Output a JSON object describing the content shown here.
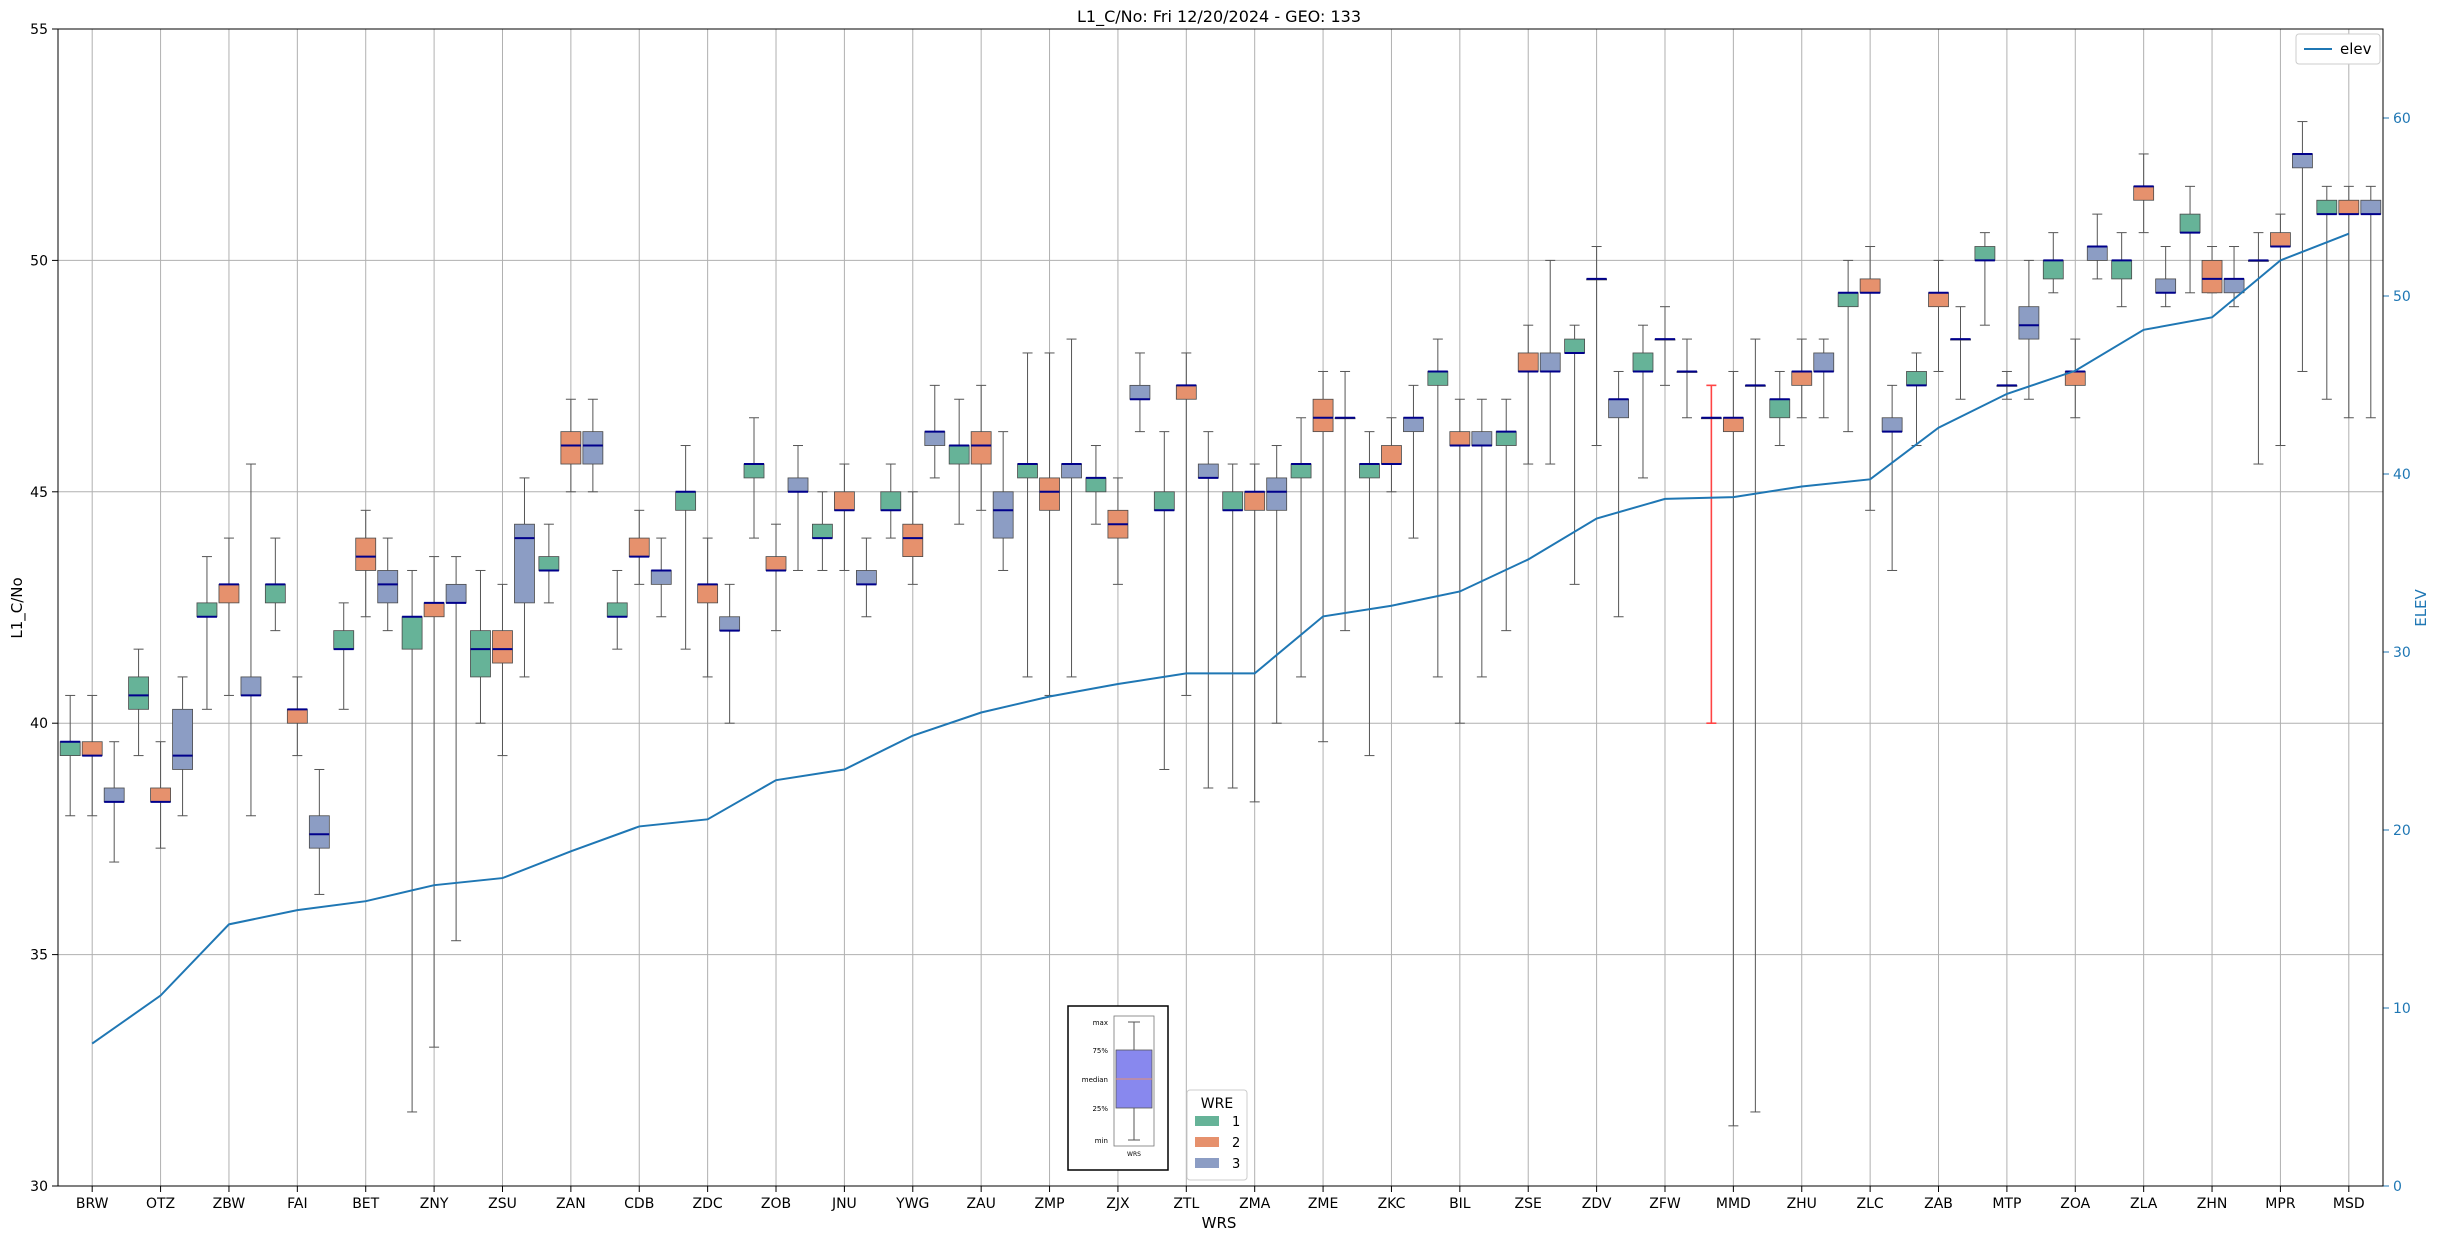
{
  "chart_data": {
    "type": "box",
    "title": "L1_C/No: Fri 12/20/2024 - GEO: 133",
    "xlabel": "WRS",
    "ylabel": "L1_C/No",
    "y2label": "ELEV",
    "ylim": [
      30,
      55
    ],
    "y2lim": [
      0,
      65
    ],
    "yticks": [
      "30",
      "35",
      "40",
      "45",
      "50",
      "55"
    ],
    "y2ticks": [
      "0",
      "10",
      "20",
      "30",
      "40",
      "50",
      "60"
    ],
    "grid": true,
    "colors": {
      "wre1": "#66b398",
      "wre2": "#e6916d",
      "wre3": "#8c9dc4",
      "median": "#00008b",
      "elev": "#1f77b4",
      "whisker": "#555555",
      "outlier_whisker": "#ff4444"
    },
    "legend_elev": {
      "label": "elev",
      "placement": "top-right"
    },
    "legend_wre": {
      "title": "WRE",
      "labels": [
        "1",
        "2",
        "3"
      ],
      "placement": "bottom-center"
    },
    "key_box": {
      "labels": [
        "max",
        "75%",
        "median",
        "25%",
        "min"
      ],
      "xlabel": "WRS"
    },
    "categories": [
      "BRW",
      "OTZ",
      "ZBW",
      "FAI",
      "BET",
      "ZNY",
      "ZSU",
      "ZAN",
      "CDB",
      "ZDC",
      "ZOB",
      "JNU",
      "YWG",
      "ZAU",
      "ZMP",
      "ZJX",
      "ZTL",
      "ZMA",
      "ZME",
      "ZKC",
      "BIL",
      "ZSE",
      "ZDV",
      "ZFW",
      "MMD",
      "ZHU",
      "ZLC",
      "ZAB",
      "MTP",
      "ZOA",
      "ZLA",
      "ZHN",
      "MPR",
      "MSD"
    ],
    "elev": [
      8,
      10.7,
      14.7,
      15.5,
      16,
      16.9,
      17.3,
      18.8,
      20.2,
      20.6,
      22.8,
      23.4,
      25.3,
      26.6,
      27.5,
      28.2,
      28.8,
      28.8,
      32,
      32.6,
      33.4,
      35.2,
      37.5,
      38.6,
      38.7,
      39.3,
      39.7,
      42.6,
      44.5,
      45.8,
      48.1,
      48.8,
      52,
      53.5
    ],
    "boxes": [
      {
        "cat": "BRW",
        "wre": 1,
        "min": 38,
        "q1": 39.3,
        "med": 39.6,
        "q3": 39.6,
        "max": 40.6
      },
      {
        "cat": "BRW",
        "wre": 2,
        "min": 38,
        "q1": 39.3,
        "med": 39.3,
        "q3": 39.6,
        "max": 40.6
      },
      {
        "cat": "BRW",
        "wre": 3,
        "min": 37,
        "q1": 38.3,
        "med": 38.3,
        "q3": 38.6,
        "max": 39.6
      },
      {
        "cat": "OTZ",
        "wre": 1,
        "min": 39.3,
        "q1": 40.3,
        "med": 40.6,
        "q3": 41,
        "max": 41.6
      },
      {
        "cat": "OTZ",
        "wre": 2,
        "min": 37.3,
        "q1": 38.3,
        "med": 38.3,
        "q3": 38.6,
        "max": 39.6
      },
      {
        "cat": "OTZ",
        "wre": 3,
        "min": 38,
        "q1": 39,
        "med": 39.3,
        "q3": 40.3,
        "max": 41
      },
      {
        "cat": "ZBW",
        "wre": 1,
        "min": 40.3,
        "q1": 42.3,
        "med": 42.3,
        "q3": 42.6,
        "max": 43.6
      },
      {
        "cat": "ZBW",
        "wre": 2,
        "min": 40.6,
        "q1": 42.6,
        "med": 43,
        "q3": 43,
        "max": 44
      },
      {
        "cat": "ZBW",
        "wre": 3,
        "min": 38,
        "q1": 40.6,
        "med": 40.6,
        "q3": 41,
        "max": 45.6
      },
      {
        "cat": "FAI",
        "wre": 1,
        "min": 42,
        "q1": 42.6,
        "med": 43,
        "q3": 43,
        "max": 44
      },
      {
        "cat": "FAI",
        "wre": 2,
        "min": 39.3,
        "q1": 40,
        "med": 40.3,
        "q3": 40.3,
        "max": 41
      },
      {
        "cat": "FAI",
        "wre": 3,
        "min": 36.3,
        "q1": 37.3,
        "med": 37.6,
        "q3": 38,
        "max": 39
      },
      {
        "cat": "BET",
        "wre": 1,
        "min": 40.3,
        "q1": 41.6,
        "med": 41.6,
        "q3": 42,
        "max": 42.6
      },
      {
        "cat": "BET",
        "wre": 2,
        "min": 42.3,
        "q1": 43.3,
        "med": 43.6,
        "q3": 44,
        "max": 44.6
      },
      {
        "cat": "BET",
        "wre": 3,
        "min": 42,
        "q1": 42.6,
        "med": 43,
        "q3": 43.3,
        "max": 44
      },
      {
        "cat": "ZNY",
        "wre": 1,
        "min": 31.6,
        "q1": 41.6,
        "med": 42.3,
        "q3": 42.3,
        "max": 43.3
      },
      {
        "cat": "ZNY",
        "wre": 2,
        "min": 33,
        "q1": 42.3,
        "med": 42.6,
        "q3": 42.6,
        "max": 43.6
      },
      {
        "cat": "ZNY",
        "wre": 3,
        "min": 35.3,
        "q1": 42.6,
        "med": 42.6,
        "q3": 43,
        "max": 43.6
      },
      {
        "cat": "ZSU",
        "wre": 1,
        "min": 40,
        "q1": 41,
        "med": 41.6,
        "q3": 42,
        "max": 43.3
      },
      {
        "cat": "ZSU",
        "wre": 2,
        "min": 39.3,
        "q1": 41.3,
        "med": 41.6,
        "q3": 42,
        "max": 43
      },
      {
        "cat": "ZSU",
        "wre": 3,
        "min": 41,
        "q1": 42.6,
        "med": 44,
        "q3": 44.3,
        "max": 45.3
      },
      {
        "cat": "ZAN",
        "wre": 1,
        "min": 42.6,
        "q1": 43.3,
        "med": 43.3,
        "q3": 43.6,
        "max": 44.3
      },
      {
        "cat": "ZAN",
        "wre": 2,
        "min": 45,
        "q1": 45.6,
        "med": 46,
        "q3": 46.3,
        "max": 47
      },
      {
        "cat": "ZAN",
        "wre": 3,
        "min": 45,
        "q1": 45.6,
        "med": 46,
        "q3": 46.3,
        "max": 47
      },
      {
        "cat": "CDB",
        "wre": 1,
        "min": 41.6,
        "q1": 42.3,
        "med": 42.3,
        "q3": 42.6,
        "max": 43.3
      },
      {
        "cat": "CDB",
        "wre": 2,
        "min": 43,
        "q1": 43.6,
        "med": 43.6,
        "q3": 44,
        "max": 44.6
      },
      {
        "cat": "CDB",
        "wre": 3,
        "min": 42.3,
        "q1": 43,
        "med": 43.3,
        "q3": 43.3,
        "max": 44
      },
      {
        "cat": "ZDC",
        "wre": 1,
        "min": 41.6,
        "q1": 44.6,
        "med": 45,
        "q3": 45,
        "max": 46
      },
      {
        "cat": "ZDC",
        "wre": 2,
        "min": 41,
        "q1": 42.6,
        "med": 43,
        "q3": 43,
        "max": 44
      },
      {
        "cat": "ZDC",
        "wre": 3,
        "min": 40,
        "q1": 42,
        "med": 42,
        "q3": 42.3,
        "max": 43
      },
      {
        "cat": "ZOB",
        "wre": 1,
        "min": 44,
        "q1": 45.3,
        "med": 45.6,
        "q3": 45.6,
        "max": 46.6
      },
      {
        "cat": "ZOB",
        "wre": 2,
        "min": 42,
        "q1": 43.3,
        "med": 43.3,
        "q3": 43.6,
        "max": 44.3
      },
      {
        "cat": "ZOB",
        "wre": 3,
        "min": 43.3,
        "q1": 45,
        "med": 45,
        "q3": 45.3,
        "max": 46
      },
      {
        "cat": "JNU",
        "wre": 1,
        "min": 43.3,
        "q1": 44,
        "med": 44,
        "q3": 44.3,
        "max": 45
      },
      {
        "cat": "JNU",
        "wre": 2,
        "min": 43.3,
        "q1": 44.6,
        "med": 44.6,
        "q3": 45,
        "max": 45.6
      },
      {
        "cat": "JNU",
        "wre": 3,
        "min": 42.3,
        "q1": 43,
        "med": 43,
        "q3": 43.3,
        "max": 44
      },
      {
        "cat": "YWG",
        "wre": 1,
        "min": 44,
        "q1": 44.6,
        "med": 44.6,
        "q3": 45,
        "max": 45.6
      },
      {
        "cat": "YWG",
        "wre": 2,
        "min": 43,
        "q1": 43.6,
        "med": 44,
        "q3": 44.3,
        "max": 45
      },
      {
        "cat": "YWG",
        "wre": 3,
        "min": 45.3,
        "q1": 46,
        "med": 46.3,
        "q3": 46.3,
        "max": 47.3
      },
      {
        "cat": "ZAU",
        "wre": 1,
        "min": 44.3,
        "q1": 45.6,
        "med": 46,
        "q3": 46,
        "max": 47
      },
      {
        "cat": "ZAU",
        "wre": 2,
        "min": 44.6,
        "q1": 45.6,
        "med": 46,
        "q3": 46.3,
        "max": 47.3
      },
      {
        "cat": "ZAU",
        "wre": 3,
        "min": 43.3,
        "q1": 44,
        "med": 44.6,
        "q3": 45,
        "max": 46.3
      },
      {
        "cat": "ZMP",
        "wre": 1,
        "min": 41,
        "q1": 45.3,
        "med": 45.6,
        "q3": 45.6,
        "max": 48
      },
      {
        "cat": "ZMP",
        "wre": 2,
        "min": 40.6,
        "q1": 44.6,
        "med": 45,
        "q3": 45.3,
        "max": 48
      },
      {
        "cat": "ZMP",
        "wre": 3,
        "min": 41,
        "q1": 45.3,
        "med": 45.6,
        "q3": 45.6,
        "max": 48.3
      },
      {
        "cat": "ZJX",
        "wre": 1,
        "min": 44.3,
        "q1": 45,
        "med": 45.3,
        "q3": 45.3,
        "max": 46
      },
      {
        "cat": "ZJX",
        "wre": 2,
        "min": 43,
        "q1": 44,
        "med": 44.3,
        "q3": 44.6,
        "max": 45.3
      },
      {
        "cat": "ZJX",
        "wre": 3,
        "min": 46.3,
        "q1": 47,
        "med": 47,
        "q3": 47.3,
        "max": 48
      },
      {
        "cat": "ZTL",
        "wre": 1,
        "min": 39,
        "q1": 44.6,
        "med": 44.6,
        "q3": 45,
        "max": 46.3
      },
      {
        "cat": "ZTL",
        "wre": 2,
        "min": 40.6,
        "q1": 47,
        "med": 47.3,
        "q3": 47.3,
        "max": 48
      },
      {
        "cat": "ZTL",
        "wre": 3,
        "min": 38.6,
        "q1": 45.3,
        "med": 45.3,
        "q3": 45.6,
        "max": 46.3
      },
      {
        "cat": "ZMA",
        "wre": 1,
        "min": 38.6,
        "q1": 44.6,
        "med": 44.6,
        "q3": 45,
        "max": 45.6
      },
      {
        "cat": "ZMA",
        "wre": 2,
        "min": 38.3,
        "q1": 44.6,
        "med": 45,
        "q3": 45,
        "max": 45.6
      },
      {
        "cat": "ZMA",
        "wre": 3,
        "min": 40,
        "q1": 44.6,
        "med": 45,
        "q3": 45.3,
        "max": 46
      },
      {
        "cat": "ZME",
        "wre": 1,
        "min": 41,
        "q1": 45.3,
        "med": 45.6,
        "q3": 45.6,
        "max": 46.6
      },
      {
        "cat": "ZME",
        "wre": 2,
        "min": 39.6,
        "q1": 46.3,
        "med": 46.6,
        "q3": 47,
        "max": 47.6
      },
      {
        "cat": "ZME",
        "wre": 3,
        "min": 42,
        "q1": 46.6,
        "med": 46.6,
        "q3": 46.6,
        "max": 47.6
      },
      {
        "cat": "ZKC",
        "wre": 1,
        "min": 39.3,
        "q1": 45.3,
        "med": 45.6,
        "q3": 45.6,
        "max": 46.3
      },
      {
        "cat": "ZKC",
        "wre": 2,
        "min": 45,
        "q1": 45.6,
        "med": 45.6,
        "q3": 46,
        "max": 46.6
      },
      {
        "cat": "ZKC",
        "wre": 3,
        "min": 44,
        "q1": 46.3,
        "med": 46.6,
        "q3": 46.6,
        "max": 47.3
      },
      {
        "cat": "BIL",
        "wre": 1,
        "min": 41,
        "q1": 47.3,
        "med": 47.6,
        "q3": 47.6,
        "max": 48.3
      },
      {
        "cat": "BIL",
        "wre": 2,
        "min": 40,
        "q1": 46,
        "med": 46,
        "q3": 46.3,
        "max": 47
      },
      {
        "cat": "BIL",
        "wre": 3,
        "min": 41,
        "q1": 46,
        "med": 46,
        "q3": 46.3,
        "max": 47
      },
      {
        "cat": "ZSE",
        "wre": 1,
        "min": 42,
        "q1": 46,
        "med": 46.3,
        "q3": 46.3,
        "max": 47
      },
      {
        "cat": "ZSE",
        "wre": 2,
        "min": 45.6,
        "q1": 47.6,
        "med": 47.6,
        "q3": 48,
        "max": 48.6
      },
      {
        "cat": "ZSE",
        "wre": 3,
        "min": 45.6,
        "q1": 47.6,
        "med": 47.6,
        "q3": 48,
        "max": 50
      },
      {
        "cat": "ZDV",
        "wre": 1,
        "min": 43,
        "q1": 48,
        "med": 48,
        "q3": 48.3,
        "max": 48.6
      },
      {
        "cat": "ZDV",
        "wre": 2,
        "min": 46,
        "q1": 49.6,
        "med": 49.6,
        "q3": 49.6,
        "max": 50.3
      },
      {
        "cat": "ZDV",
        "wre": 3,
        "min": 42.3,
        "q1": 46.6,
        "med": 47,
        "q3": 47,
        "max": 47.6
      },
      {
        "cat": "ZFW",
        "wre": 1,
        "min": 45.3,
        "q1": 47.6,
        "med": 47.6,
        "q3": 48,
        "max": 48.6
      },
      {
        "cat": "ZFW",
        "wre": 2,
        "min": 47.3,
        "q1": 48.3,
        "med": 48.3,
        "q3": 48.3,
        "max": 49
      },
      {
        "cat": "ZFW",
        "wre": 3,
        "min": 46.6,
        "q1": 47.6,
        "med": 47.6,
        "q3": 47.6,
        "max": 48.3
      },
      {
        "cat": "MMD",
        "wre": 1,
        "min": 40,
        "q1": 46.6,
        "med": 46.6,
        "q3": 46.6,
        "max": 47.3,
        "flag": true
      },
      {
        "cat": "MMD",
        "wre": 2,
        "min": 31.3,
        "q1": 46.3,
        "med": 46.6,
        "q3": 46.6,
        "max": 47.6
      },
      {
        "cat": "MMD",
        "wre": 3,
        "min": 31.6,
        "q1": 47.3,
        "med": 47.3,
        "q3": 47.3,
        "max": 48.3
      },
      {
        "cat": "ZHU",
        "wre": 1,
        "min": 46,
        "q1": 46.6,
        "med": 47,
        "q3": 47,
        "max": 47.6
      },
      {
        "cat": "ZHU",
        "wre": 2,
        "min": 46.6,
        "q1": 47.3,
        "med": 47.6,
        "q3": 47.6,
        "max": 48.3
      },
      {
        "cat": "ZHU",
        "wre": 3,
        "min": 46.6,
        "q1": 47.6,
        "med": 47.6,
        "q3": 48,
        "max": 48.3
      },
      {
        "cat": "ZLC",
        "wre": 1,
        "min": 46.3,
        "q1": 49,
        "med": 49.3,
        "q3": 49.3,
        "max": 50
      },
      {
        "cat": "ZLC",
        "wre": 2,
        "min": 44.6,
        "q1": 49.3,
        "med": 49.3,
        "q3": 49.6,
        "max": 50.3
      },
      {
        "cat": "ZLC",
        "wre": 3,
        "min": 43.3,
        "q1": 46.3,
        "med": 46.3,
        "q3": 46.6,
        "max": 47.3
      },
      {
        "cat": "ZAB",
        "wre": 1,
        "min": 46,
        "q1": 47.3,
        "med": 47.3,
        "q3": 47.6,
        "max": 48
      },
      {
        "cat": "ZAB",
        "wre": 2,
        "min": 47.6,
        "q1": 49,
        "med": 49.3,
        "q3": 49.3,
        "max": 50
      },
      {
        "cat": "ZAB",
        "wre": 3,
        "min": 47,
        "q1": 48.3,
        "med": 48.3,
        "q3": 48.3,
        "max": 49
      },
      {
        "cat": "MTP",
        "wre": 1,
        "min": 48.6,
        "q1": 50,
        "med": 50,
        "q3": 50.3,
        "max": 50.6
      },
      {
        "cat": "MTP",
        "wre": 2,
        "min": 47,
        "q1": 47.3,
        "med": 47.3,
        "q3": 47.3,
        "max": 47.6
      },
      {
        "cat": "MTP",
        "wre": 3,
        "min": 47,
        "q1": 48.3,
        "med": 48.6,
        "q3": 49,
        "max": 50
      },
      {
        "cat": "ZOA",
        "wre": 1,
        "min": 49.3,
        "q1": 49.6,
        "med": 50,
        "q3": 50,
        "max": 50.6
      },
      {
        "cat": "ZOA",
        "wre": 2,
        "min": 46.6,
        "q1": 47.3,
        "med": 47.6,
        "q3": 47.6,
        "max": 48.3
      },
      {
        "cat": "ZOA",
        "wre": 3,
        "min": 49.6,
        "q1": 50,
        "med": 50.3,
        "q3": 50.3,
        "max": 51
      },
      {
        "cat": "ZLA",
        "wre": 1,
        "min": 49,
        "q1": 49.6,
        "med": 50,
        "q3": 50,
        "max": 50.6
      },
      {
        "cat": "ZLA",
        "wre": 2,
        "min": 50.6,
        "q1": 51.3,
        "med": 51.6,
        "q3": 51.6,
        "max": 52.3
      },
      {
        "cat": "ZLA",
        "wre": 3,
        "min": 49,
        "q1": 49.3,
        "med": 49.3,
        "q3": 49.6,
        "max": 50.3
      },
      {
        "cat": "ZHN",
        "wre": 1,
        "min": 49.3,
        "q1": 50.6,
        "med": 50.6,
        "q3": 51,
        "max": 51.6
      },
      {
        "cat": "ZHN",
        "wre": 2,
        "min": 49.3,
        "q1": 49.3,
        "med": 49.6,
        "q3": 50,
        "max": 50.3
      },
      {
        "cat": "ZHN",
        "wre": 3,
        "min": 49,
        "q1": 49.3,
        "med": 49.6,
        "q3": 49.6,
        "max": 50.3
      },
      {
        "cat": "MPR",
        "wre": 1,
        "min": 45.6,
        "q1": 50,
        "med": 50,
        "q3": 50,
        "max": 50.6
      },
      {
        "cat": "MPR",
        "wre": 2,
        "min": 46,
        "q1": 50.3,
        "med": 50.3,
        "q3": 50.6,
        "max": 51
      },
      {
        "cat": "MPR",
        "wre": 3,
        "min": 47.6,
        "q1": 52,
        "med": 52.3,
        "q3": 52.3,
        "max": 53
      },
      {
        "cat": "MSD",
        "wre": 1,
        "min": 47,
        "q1": 51,
        "med": 51,
        "q3": 51.3,
        "max": 51.6
      },
      {
        "cat": "MSD",
        "wre": 2,
        "min": 46.6,
        "q1": 51,
        "med": 51,
        "q3": 51.3,
        "max": 51.6
      },
      {
        "cat": "MSD",
        "wre": 3,
        "min": 46.6,
        "q1": 51,
        "med": 51,
        "q3": 51.3,
        "max": 51.6
      }
    ]
  }
}
